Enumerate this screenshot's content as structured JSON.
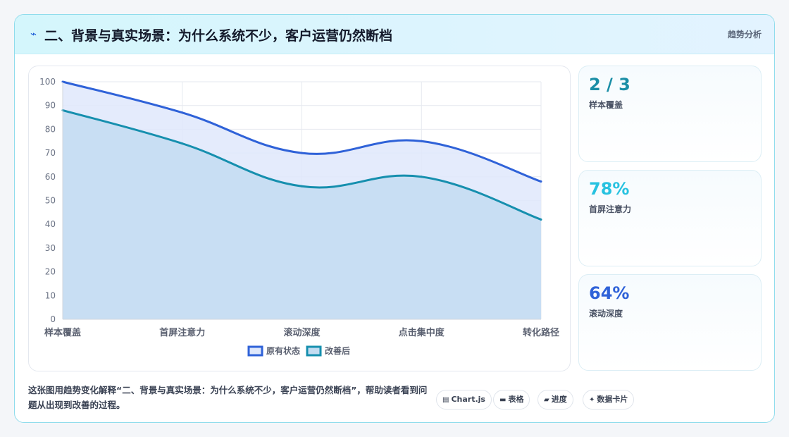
{
  "header": {
    "icon": "⌁",
    "title": "二、背景与真实场景：为什么系统不少，客户运营仍然断档",
    "tag": "趋势分析"
  },
  "chart_data": {
    "type": "area",
    "categories": [
      "样本覆盖",
      "首屏注意力",
      "滚动深度",
      "点击集中度",
      "转化路径"
    ],
    "series": [
      {
        "name": "原有状态",
        "values": [
          100,
          87,
          70,
          75,
          58
        ],
        "color": "#2f62d8",
        "fill": "#dfe8fb"
      },
      {
        "name": "改善后",
        "values": [
          88,
          74,
          56,
          60,
          42
        ],
        "color": "#168fae",
        "fill": "#c3dcf1"
      }
    ],
    "ylim": [
      0,
      100
    ],
    "yticks": [
      0,
      10,
      20,
      30,
      40,
      50,
      60,
      70,
      80,
      90,
      100
    ],
    "grid": true,
    "legend": "bottom"
  },
  "stats": [
    {
      "value": "2 / 3",
      "label": "样本覆盖",
      "color": "#1a8ea6"
    },
    {
      "value": "78%",
      "label": "首屏注意力",
      "color": "#27c2e0"
    },
    {
      "value": "64%",
      "label": "滚动深度",
      "color": "#2f62d8"
    }
  ],
  "footer": {
    "text": "这张图用趋势变化解释“二、背景与真实场景：为什么系统不少，客户运营仍然断档”，帮助读者看到问题从出现到改善的过程。",
    "pills": [
      {
        "icon": "chart-icon",
        "glyph": "▤",
        "label": "Chart.js"
      },
      {
        "icon": "table-icon",
        "glyph": "▬",
        "label": "表格"
      },
      {
        "icon": "progress-icon",
        "glyph": "▰",
        "label": "进度"
      },
      {
        "icon": "sparkle-icon",
        "glyph": "✦",
        "label": "数据卡片"
      }
    ]
  }
}
